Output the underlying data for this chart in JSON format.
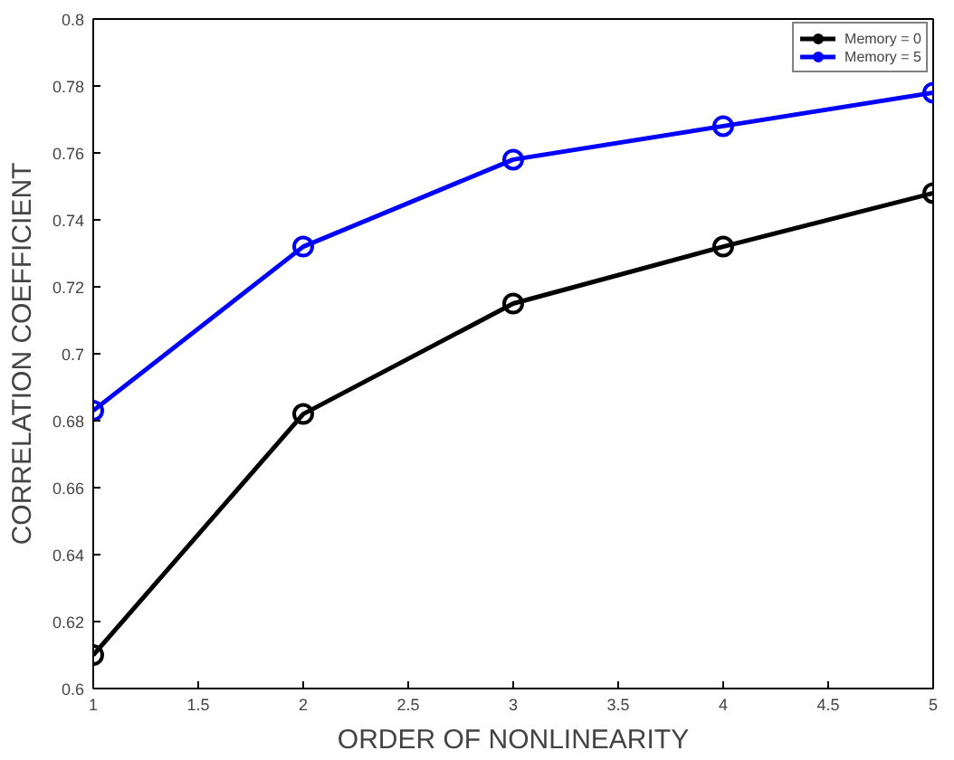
{
  "chart_data": {
    "type": "line",
    "xlabel": "ORDER OF NONLINEARITY",
    "ylabel": "CORRELATION COEFFICIENT",
    "x": [
      1,
      2,
      3,
      4,
      5
    ],
    "series": [
      {
        "name": "Memory = 0",
        "color": "#000000",
        "values": [
          0.61,
          0.682,
          0.715,
          0.732,
          0.748
        ]
      },
      {
        "name": "Memory = 5",
        "color": "#0000ff",
        "values": [
          0.683,
          0.732,
          0.758,
          0.768,
          0.778
        ]
      }
    ],
    "xlim": [
      1,
      5
    ],
    "ylim": [
      0.6,
      0.8
    ],
    "xticks": [
      1,
      1.5,
      2,
      2.5,
      3,
      3.5,
      4,
      4.5,
      5
    ],
    "yticks": [
      0.6,
      0.62,
      0.64,
      0.66,
      0.68,
      0.7,
      0.72,
      0.74,
      0.76,
      0.78,
      0.8
    ],
    "grid": false,
    "legend": "top right",
    "marker": "circle",
    "line_style": "solid"
  }
}
